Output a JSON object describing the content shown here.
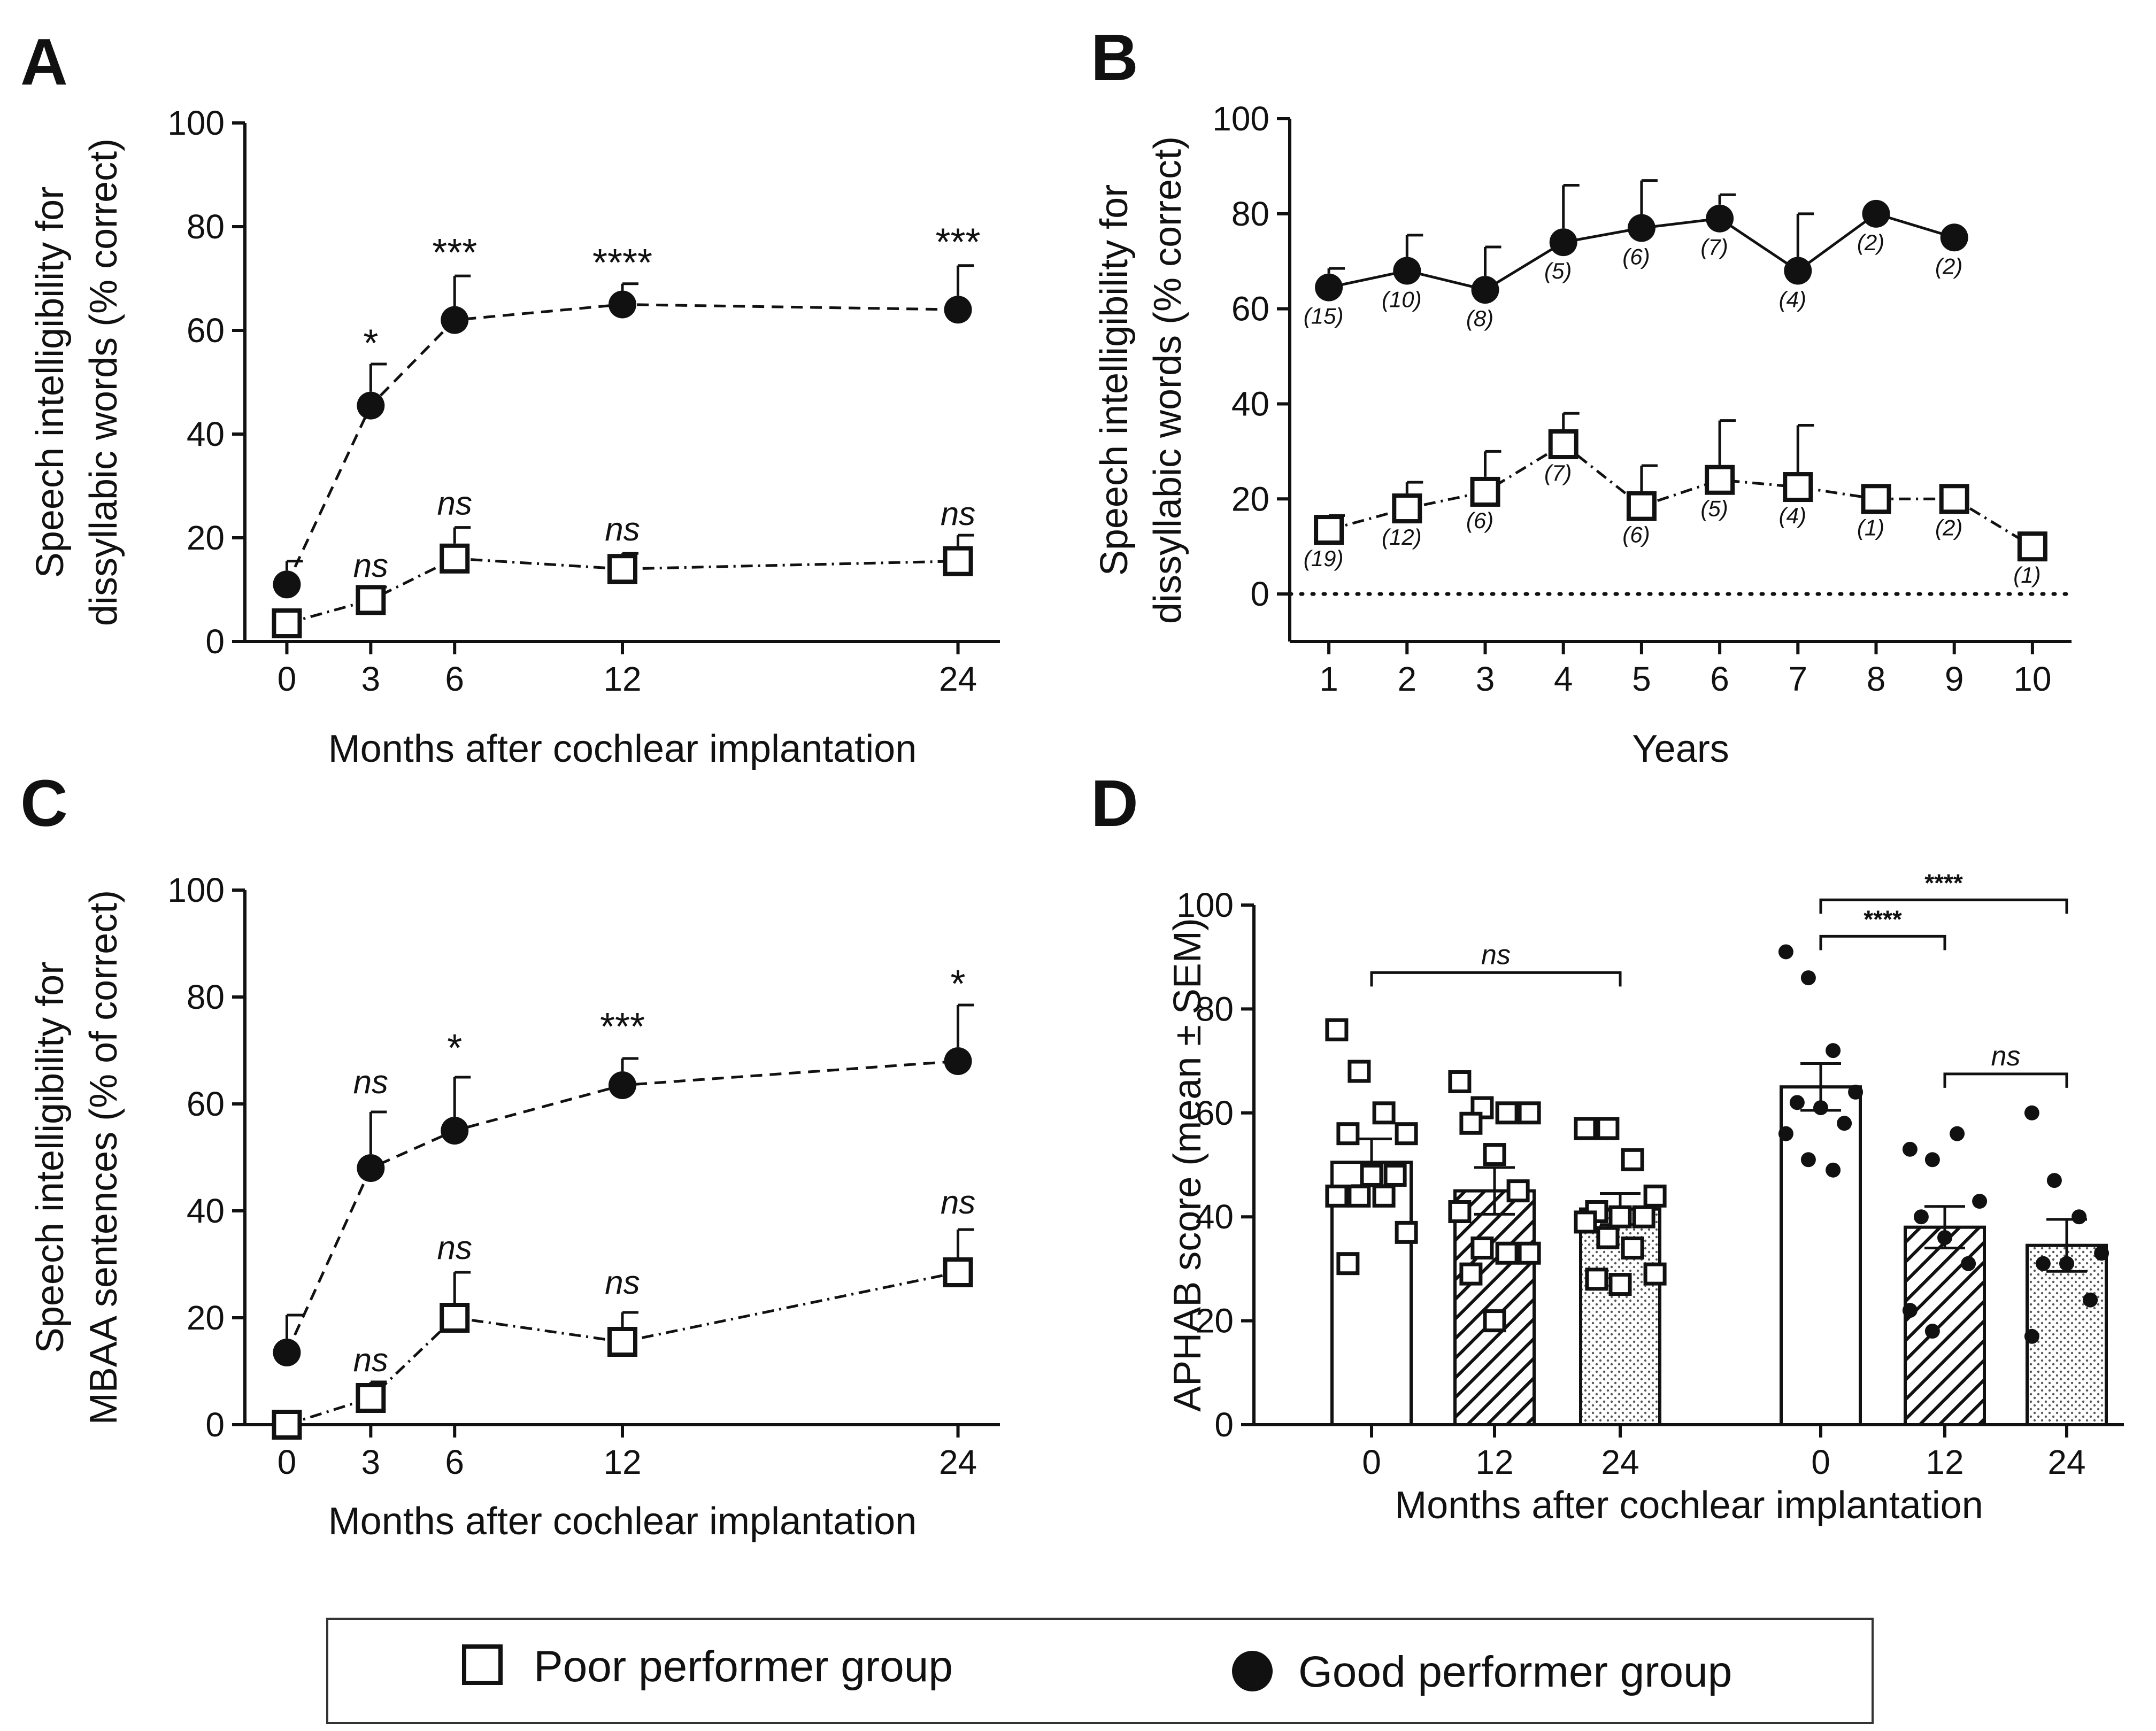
{
  "chart_data": [
    {
      "panel": "A",
      "type": "line",
      "xlabel": "Months after cochlear implantation",
      "ylabel": [
        "Speech intelligibility for",
        "dissyllabic words (% correct)"
      ],
      "xlim": [
        -1.5,
        25.5
      ],
      "ylim": [
        0,
        100
      ],
      "xticks": [
        0,
        3,
        6,
        12,
        24
      ],
      "yticks": [
        0,
        20,
        40,
        60,
        80,
        100
      ],
      "series": [
        {
          "name": "Good performer group",
          "marker": "filled-circle",
          "dash": "dashed",
          "x": [
            0,
            3,
            6,
            12,
            24
          ],
          "y": [
            11,
            45.5,
            62,
            65,
            64
          ],
          "err": [
            4.5,
            8,
            8.5,
            4,
            8.5
          ]
        },
        {
          "name": "Poor performer group",
          "marker": "open-square",
          "dash": "dashdot",
          "x": [
            0,
            3,
            6,
            12,
            24
          ],
          "y": [
            3.5,
            8,
            16,
            14,
            15.5
          ],
          "err": [
            0,
            2.5,
            6,
            3,
            5
          ]
        }
      ],
      "annotations": [
        {
          "x": 3,
          "y": 55,
          "text": "*",
          "style": "star"
        },
        {
          "x": 6,
          "y": 72.5,
          "text": "***",
          "style": "star"
        },
        {
          "x": 12,
          "y": 70.5,
          "text": "****",
          "style": "star"
        },
        {
          "x": 24,
          "y": 74.5,
          "text": "***",
          "style": "star"
        },
        {
          "x": 3,
          "y": 12.5,
          "text": "ns",
          "style": "ns"
        },
        {
          "x": 6,
          "y": 24.5,
          "text": "ns",
          "style": "ns"
        },
        {
          "x": 12,
          "y": 19.5,
          "text": "ns",
          "style": "ns"
        },
        {
          "x": 24,
          "y": 22.5,
          "text": "ns",
          "style": "ns"
        }
      ]
    },
    {
      "panel": "B",
      "type": "line",
      "xlabel": "Years",
      "ylabel": [
        "Speech intelligibility for",
        "dissyllabic words (% correct)"
      ],
      "xlim": [
        0.5,
        10.5
      ],
      "ylim": [
        -10,
        100
      ],
      "xticks": [
        1,
        2,
        3,
        4,
        5,
        6,
        7,
        8,
        9,
        10
      ],
      "yticks": [
        0,
        20,
        40,
        60,
        80,
        100
      ],
      "reference_line_y": 0,
      "series": [
        {
          "name": "Good performer group",
          "marker": "filled-circle",
          "dash": "solid",
          "x": [
            1,
            2,
            3,
            4,
            5,
            6,
            7,
            8,
            9
          ],
          "y": [
            64.5,
            68,
            64,
            74,
            77,
            79,
            68,
            80,
            75
          ],
          "err": [
            4,
            7.5,
            9,
            12,
            10,
            5,
            12,
            0,
            0
          ],
          "counts": [
            "(15)",
            "(10)",
            "(8)",
            "(5)",
            "(6)",
            "(7)",
            "(4)",
            "(2)",
            "(2)"
          ]
        },
        {
          "name": "Poor performer group",
          "marker": "open-square",
          "dash": "dashdot",
          "x": [
            1,
            2,
            3,
            4,
            5,
            6,
            7,
            8,
            9,
            10
          ],
          "y": [
            13.5,
            18,
            21.5,
            31.5,
            18.5,
            24,
            22.5,
            20,
            20,
            10
          ],
          "err": [
            3,
            5.5,
            8.5,
            6.5,
            8.5,
            12.5,
            13,
            0,
            0,
            0
          ],
          "counts": [
            "(19)",
            "(12)",
            "(6)",
            "(7)",
            "(6)",
            "(5)",
            "(4)",
            "(1)",
            "(2)",
            "(1)"
          ]
        }
      ]
    },
    {
      "panel": "C",
      "type": "line",
      "xlabel": "Months after cochlear implantation",
      "ylabel": [
        "Speech intelligibility for",
        "MBAA sentences (% of correct)"
      ],
      "xlim": [
        -1.5,
        25.5
      ],
      "ylim": [
        0,
        100
      ],
      "xticks": [
        0,
        3,
        6,
        12,
        24
      ],
      "yticks": [
        0,
        20,
        40,
        60,
        80,
        100
      ],
      "series": [
        {
          "name": "Good performer group",
          "marker": "filled-circle",
          "dash": "dashed",
          "x": [
            0,
            3,
            6,
            12,
            24
          ],
          "y": [
            13.5,
            48,
            55,
            63.5,
            68
          ],
          "err": [
            7,
            10.5,
            10,
            5,
            10.5
          ]
        },
        {
          "name": "Poor performer group",
          "marker": "open-square",
          "dash": "dashdot",
          "x": [
            0,
            3,
            6,
            12,
            24
          ],
          "y": [
            0,
            5,
            20,
            15.5,
            28.5
          ],
          "err": [
            0,
            3,
            8.5,
            5.5,
            8
          ]
        }
      ],
      "annotations": [
        {
          "x": 3,
          "y": 62,
          "text": "ns",
          "style": "ns"
        },
        {
          "x": 6,
          "y": 68,
          "text": "*",
          "style": "star"
        },
        {
          "x": 12,
          "y": 72,
          "text": "***",
          "style": "star"
        },
        {
          "x": 24,
          "y": 80,
          "text": "*",
          "style": "star"
        },
        {
          "x": 3,
          "y": 10,
          "text": "ns",
          "style": "ns"
        },
        {
          "x": 6,
          "y": 31,
          "text": "ns",
          "style": "ns"
        },
        {
          "x": 12,
          "y": 24.5,
          "text": "ns",
          "style": "ns"
        },
        {
          "x": 24,
          "y": 39.5,
          "text": "ns",
          "style": "ns"
        }
      ]
    },
    {
      "panel": "D",
      "type": "bar",
      "xlabel": "Months after cochlear implantation",
      "ylabel": "APHAB score (mean ± SEM)",
      "ylim": [
        0,
        100
      ],
      "yticks": [
        0,
        20,
        40,
        60,
        80,
        100
      ],
      "categories": [
        "0",
        "12",
        "24",
        "0",
        "12",
        "24"
      ],
      "bars": [
        {
          "group": "Poor performer group",
          "label": "0",
          "mean": 50.5,
          "sem": 4.5,
          "fill": "white",
          "points": [
            76,
            68,
            60,
            56,
            56,
            48,
            48,
            44,
            44,
            44,
            37,
            31
          ]
        },
        {
          "group": "Poor performer group",
          "label": "12",
          "mean": 45,
          "sem": 4.5,
          "fill": "hatch",
          "points": [
            66,
            61,
            60,
            60,
            58,
            52,
            45,
            41,
            34,
            33,
            33,
            29,
            20
          ]
        },
        {
          "group": "Poor performer group",
          "label": "24",
          "mean": 41.5,
          "sem": 3,
          "fill": "dots",
          "points": [
            57,
            57,
            51,
            44,
            41,
            40,
            40,
            39,
            36,
            34,
            29,
            28,
            27
          ]
        },
        {
          "group": "Good performer group",
          "label": "0",
          "mean": 65,
          "sem": 4.5,
          "fill": "white",
          "points": [
            91,
            86,
            72,
            64,
            62,
            61,
            58,
            56,
            51,
            49
          ]
        },
        {
          "group": "Good performer group",
          "label": "12",
          "mean": 38,
          "sem": 4,
          "fill": "hatch",
          "points": [
            53,
            51,
            56,
            43,
            40,
            36,
            31,
            22,
            18
          ]
        },
        {
          "group": "Good performer group",
          "label": "24",
          "mean": 34.5,
          "sem": 5,
          "fill": "dots",
          "points": [
            60,
            47,
            40,
            33,
            31,
            31,
            24,
            17
          ]
        }
      ],
      "brackets": [
        {
          "from": 0,
          "to": 2,
          "y": 87,
          "text": "ns",
          "style": "ns"
        },
        {
          "from": 3,
          "to": 4,
          "y": 94,
          "text": "****",
          "style": "star"
        },
        {
          "from": 3,
          "to": 5,
          "y": 101,
          "text": "****",
          "style": "star"
        },
        {
          "from": 4,
          "to": 5,
          "y": 67.5,
          "text": "ns",
          "style": "ns"
        }
      ]
    }
  ],
  "legend": {
    "items": [
      {
        "marker": "open-square",
        "label": "Poor performer group"
      },
      {
        "marker": "filled-circle",
        "label": "Good performer group"
      }
    ]
  }
}
